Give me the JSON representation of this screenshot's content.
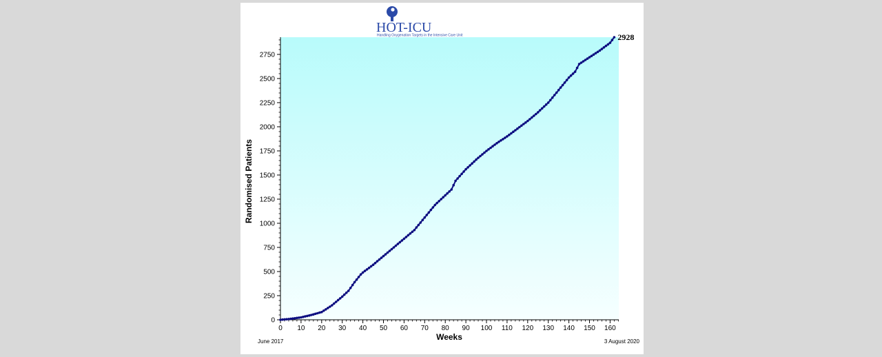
{
  "logo": {
    "name": "HOT-ICU",
    "tagline": "Handling Oxygenation Targets in the Intensive Care Unit"
  },
  "colors": {
    "page_bg": "#d9d9d9",
    "card_bg": "#ffffff",
    "plot_top": "#b8fbfb",
    "plot_bottom": "#f6ffff",
    "series": "#0d0d80",
    "logo_blue": "#2b4aa8"
  },
  "footer": {
    "start_label": "June 2017",
    "end_label": "3 August 2020"
  },
  "chart_data": {
    "type": "scatter",
    "title": "",
    "xlabel": "Weeks",
    "ylabel": "Randomised Patients",
    "xlim": [
      0,
      165
    ],
    "ylim": [
      0,
      2928
    ],
    "x_ticks": [
      0,
      10,
      20,
      30,
      40,
      50,
      60,
      70,
      80,
      90,
      100,
      110,
      120,
      130,
      140,
      150,
      160
    ],
    "y_ticks": [
      0,
      250,
      500,
      750,
      1000,
      1250,
      1500,
      1750,
      2000,
      2250,
      2500,
      2750
    ],
    "end_annotation": "2928",
    "grid": false,
    "series": [
      {
        "x": [
          0,
          5,
          10,
          15,
          20,
          25,
          30,
          33,
          36,
          39,
          40,
          45,
          50,
          55,
          60,
          65,
          70,
          75,
          80,
          83,
          85,
          90,
          95,
          100,
          105,
          110,
          115,
          120,
          125,
          130,
          135,
          140,
          143,
          145,
          150,
          155,
          160,
          162
        ],
        "y": [
          0,
          10,
          25,
          50,
          80,
          150,
          240,
          300,
          390,
          470,
          490,
          570,
          660,
          750,
          840,
          930,
          1060,
          1190,
          1290,
          1350,
          1440,
          1560,
          1660,
          1750,
          1830,
          1900,
          1980,
          2060,
          2150,
          2250,
          2380,
          2510,
          2570,
          2650,
          2720,
          2790,
          2870,
          2928
        ]
      }
    ]
  }
}
